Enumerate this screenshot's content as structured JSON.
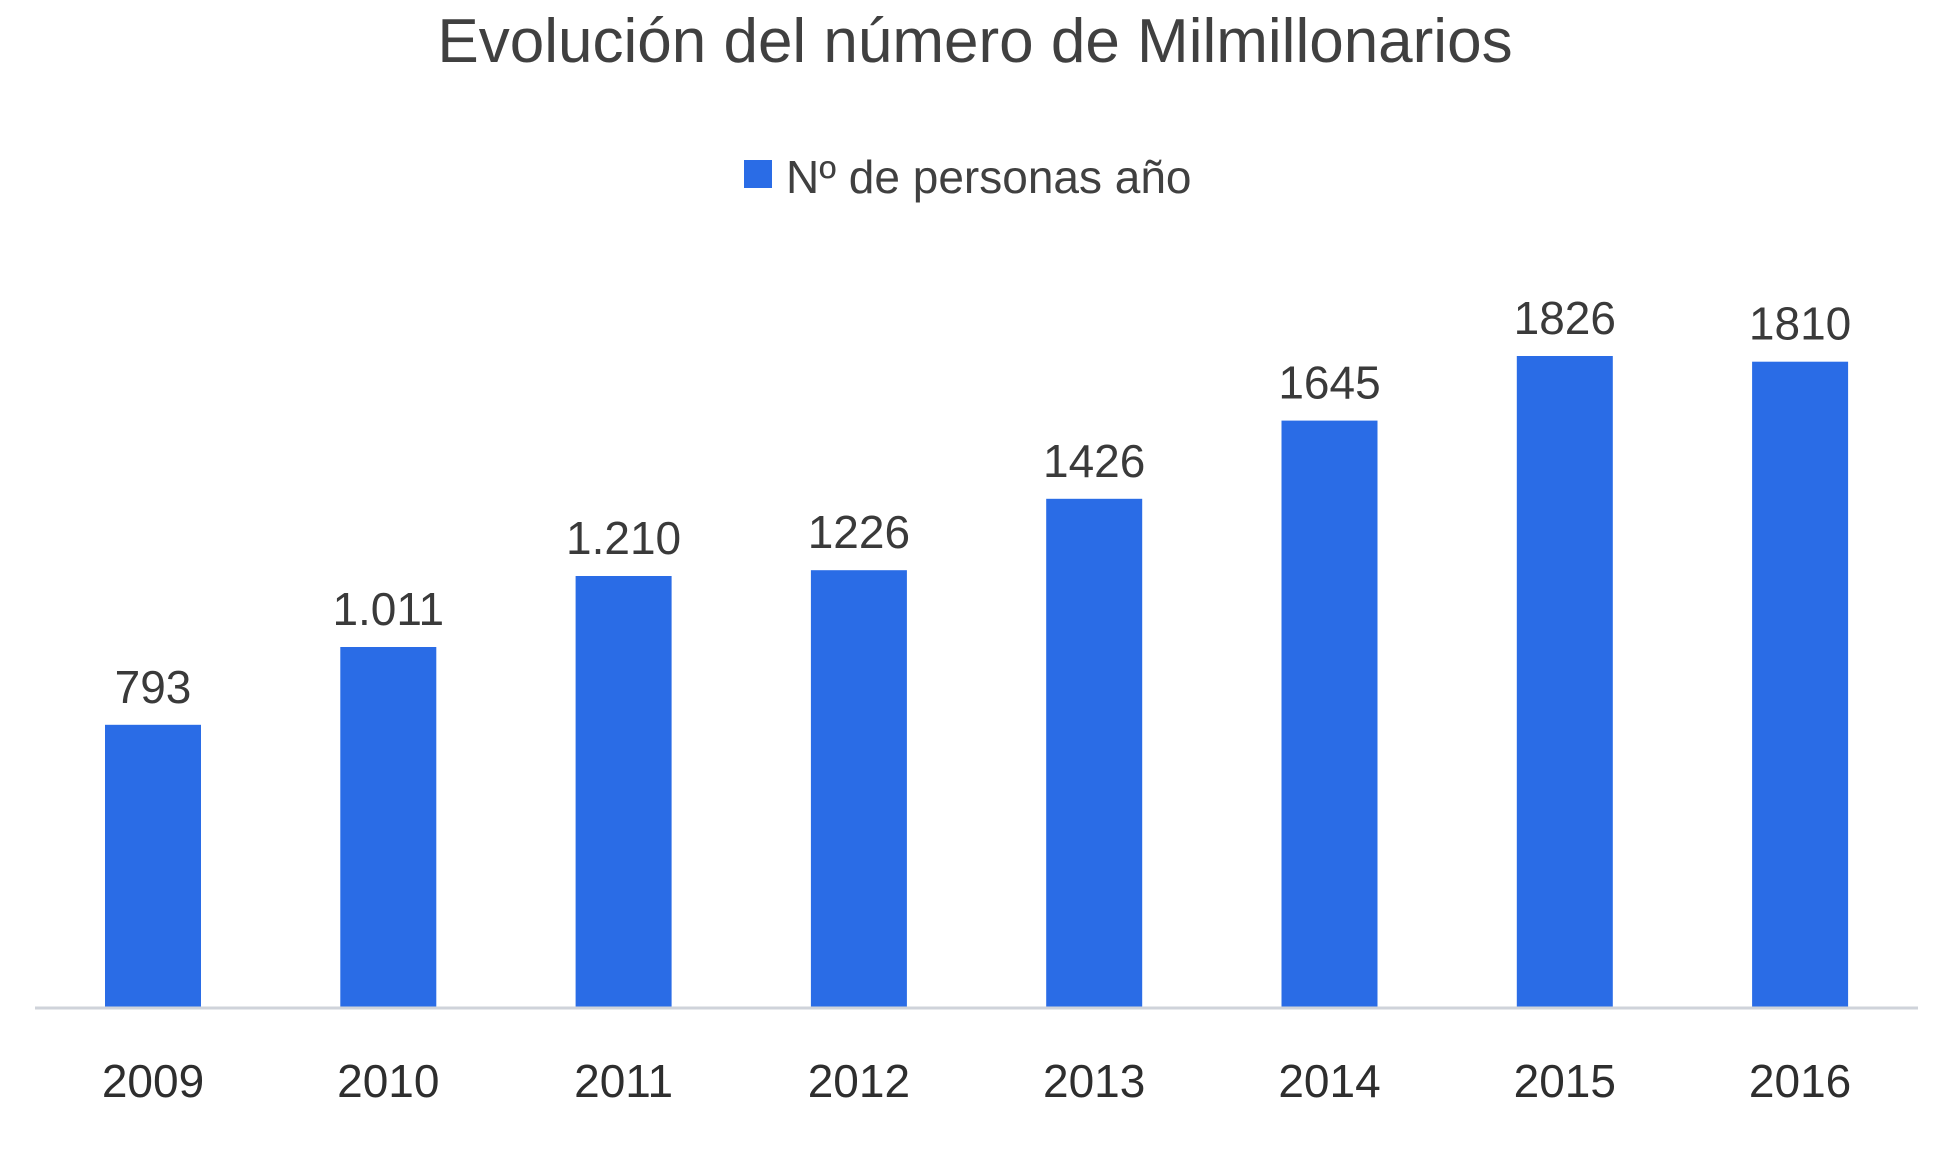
{
  "chart_data": {
    "type": "bar",
    "title": "Evolución del número de Milmillonarios",
    "xlabel": "",
    "ylabel": "",
    "categories": [
      "2009",
      "2010",
      "2011",
      "2012",
      "2013",
      "2014",
      "2015",
      "2016"
    ],
    "series": [
      {
        "name": "Nº de personas año",
        "values": [
          793,
          1011,
          1210,
          1226,
          1426,
          1645,
          1826,
          1810
        ],
        "data_labels": [
          "793",
          "1.011",
          "1.210",
          "1226",
          "1426",
          "1645",
          "1826",
          "1810"
        ],
        "color": "#2a6ce6"
      }
    ],
    "ylim": [
      0,
      1826
    ],
    "grid": false,
    "legend_position": "top-center",
    "axis_line_color": "#cfd3da"
  }
}
